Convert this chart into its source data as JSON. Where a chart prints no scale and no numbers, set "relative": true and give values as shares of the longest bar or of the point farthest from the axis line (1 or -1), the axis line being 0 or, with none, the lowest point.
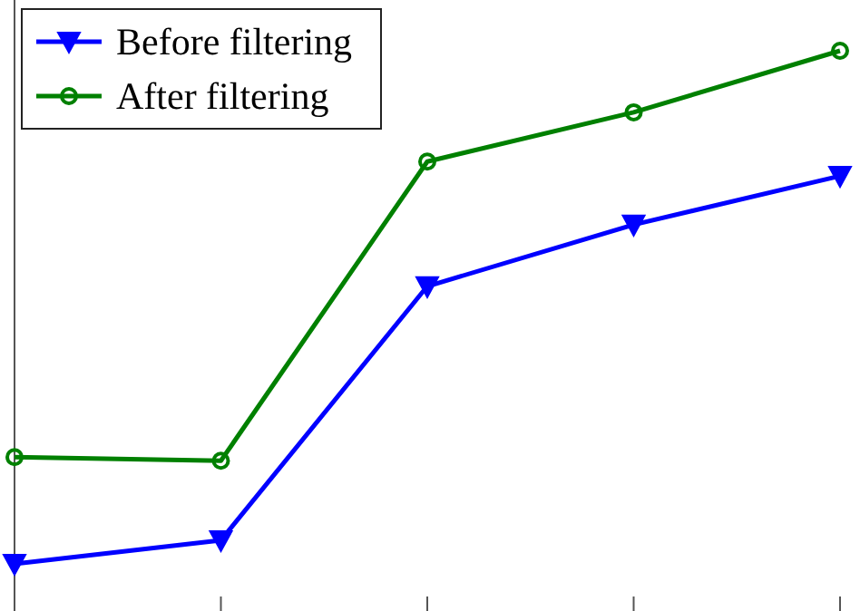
{
  "chart_data": {
    "type": "line",
    "relative": true,
    "categories": [
      null,
      null,
      null,
      null,
      null
    ],
    "series": [
      {
        "name": "Before filtering",
        "color": "#0000ff",
        "marker": "triangle",
        "values": [
          0,
          0.046,
          0.541,
          0.661,
          0.756
        ]
      },
      {
        "name": "After filtering",
        "color": "#008000",
        "marker": "circle",
        "values": [
          0.208,
          0.201,
          0.784,
          0.88,
          1
        ]
      }
    ],
    "legend": "top left"
  }
}
